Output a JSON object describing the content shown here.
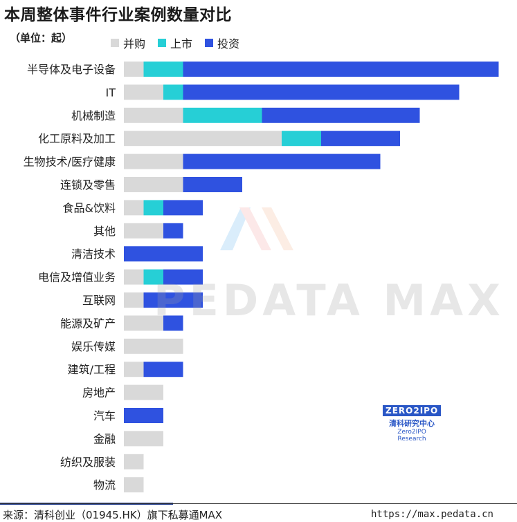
{
  "title": "本周整体事件行业案例数量对比",
  "unit": "（单位：起）",
  "legend": [
    {
      "label": "并购",
      "color": "#d9d9d9"
    },
    {
      "label": "上市",
      "color": "#26cfd6"
    },
    {
      "label": "投资",
      "color": "#2f52e0"
    }
  ],
  "chart_data": {
    "type": "bar",
    "orientation": "horizontal",
    "stacked": true,
    "categories": [
      "半导体及电子设备",
      "IT",
      "机械制造",
      "化工原料及加工",
      "生物技术/医疗健康",
      "连锁及零售",
      "食品&饮料",
      "其他",
      "清洁技术",
      "电信及增值业务",
      "互联网",
      "能源及矿产",
      "娱乐传媒",
      "建筑/工程",
      "房地产",
      "汽车",
      "金融",
      "纺织及服装",
      "物流"
    ],
    "series": [
      {
        "name": "并购",
        "color": "#d9d9d9",
        "values": [
          1,
          2,
          3,
          8,
          3,
          3,
          1,
          2,
          0,
          1,
          1,
          2,
          3,
          1,
          2,
          0,
          2,
          1,
          1
        ]
      },
      {
        "name": "上市",
        "color": "#26cfd6",
        "values": [
          2,
          1,
          4,
          2,
          0,
          0,
          1,
          0,
          0,
          1,
          0,
          0,
          0,
          0,
          0,
          0,
          0,
          0,
          0
        ]
      },
      {
        "name": "投资",
        "color": "#2f52e0",
        "values": [
          16,
          14,
          8,
          4,
          10,
          3,
          2,
          1,
          4,
          2,
          3,
          1,
          0,
          2,
          0,
          2,
          0,
          0,
          0
        ]
      }
    ],
    "grid": false
  },
  "watermark": "PEDATA MAX",
  "logo": {
    "brand": "ZERO2IPO",
    "cn": "清科研究中心",
    "en": "Zero2IPO Research"
  },
  "footer": {
    "source": "来源：清科创业（01945.HK）旗下私募通MAX",
    "site": "https://max.pedata.cn"
  }
}
